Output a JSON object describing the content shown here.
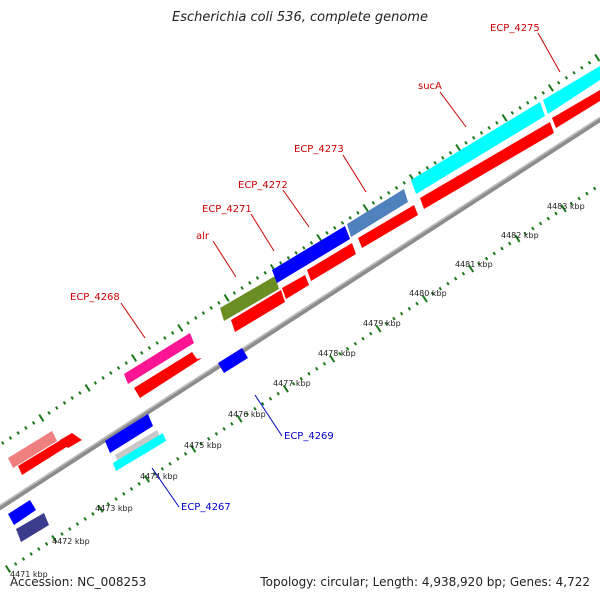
{
  "title": "Escherichia coli 536, complete genome",
  "footer": {
    "accession": "Accession: NC_008253",
    "summary": "Topology: circular; Length: 4,938,920 bp; Genes: 4,722"
  },
  "colors": {
    "red": "#ff0000",
    "cyan": "#00ffff",
    "blue": "#0000ff",
    "steel": "#4f81bd",
    "olive": "#6b8e23",
    "magenta": "#ff1493",
    "salmon": "#f08080",
    "gray": "#c8c8c8",
    "navy": "#3c3c8c",
    "backbone": "#8c8c8c",
    "tick": "#1a7a1a",
    "label_red": "#cc0000",
    "label_blue": "#0000cc"
  },
  "kbp_labels": [
    {
      "text": "4471 kbp"
    },
    {
      "text": "4472 kbp"
    },
    {
      "text": "4473 kbp"
    },
    {
      "text": "4474 kbp"
    },
    {
      "text": "4475 kbp"
    },
    {
      "text": "4476 kbp"
    },
    {
      "text": "4477 kbp"
    },
    {
      "text": "4478 kbp"
    },
    {
      "text": "4479 kbp"
    },
    {
      "text": "4480 kbp"
    },
    {
      "text": "4481 kbp"
    },
    {
      "text": "4482 kbp"
    },
    {
      "text": "4483 kbp"
    }
  ],
  "gene_labels": [
    {
      "text": "ECP_4275",
      "color": "label_red"
    },
    {
      "text": "sucA",
      "color": "label_red"
    },
    {
      "text": "ECP_4273",
      "color": "label_red"
    },
    {
      "text": "ECP_4272",
      "color": "label_red"
    },
    {
      "text": "ECP_4271",
      "color": "label_red"
    },
    {
      "text": "alr",
      "color": "label_red"
    },
    {
      "text": "ECP_4268",
      "color": "label_red"
    },
    {
      "text": "ECP_4269",
      "color": "label_blue"
    },
    {
      "text": "ECP_4267",
      "color": "label_blue"
    }
  ]
}
